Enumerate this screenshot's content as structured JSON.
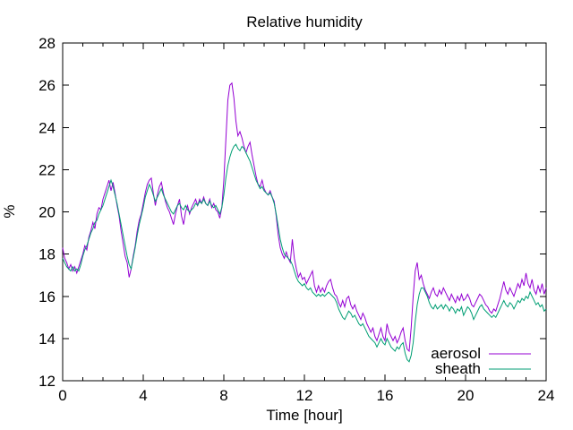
{
  "page": {
    "background": "#ffffff",
    "axis_color": "#000000",
    "text_color": "#000000"
  },
  "chart_data": {
    "type": "line",
    "title": "Relative humidity",
    "xlabel": "Time [hour]",
    "ylabel": "%",
    "xlim": [
      0,
      24
    ],
    "ylim": [
      12,
      28
    ],
    "x_major_ticks": [
      0,
      4,
      8,
      12,
      16,
      20,
      24
    ],
    "x_minor_step": 1,
    "y_major_ticks": [
      12,
      14,
      16,
      18,
      20,
      22,
      24,
      26,
      28
    ],
    "grid": false,
    "legend": {
      "position": "bottom-right-inside",
      "entries": [
        "aerosol",
        "sheath"
      ]
    },
    "x_start": 0,
    "x_step": 0.1,
    "series": [
      {
        "name": "aerosol",
        "color": "#9400d3",
        "values": [
          18.3,
          17.8,
          17.6,
          17.3,
          17.5,
          17.2,
          17.4,
          17.1,
          17.4,
          17.7,
          18.0,
          18.4,
          18.2,
          18.8,
          19.1,
          19.5,
          19.2,
          19.9,
          20.2,
          20.1,
          20.6,
          20.9,
          21.2,
          21.5,
          21.0,
          21.4,
          20.9,
          20.3,
          19.8,
          19.1,
          18.5,
          17.9,
          17.6,
          16.9,
          17.3,
          17.9,
          18.4,
          19.1,
          19.6,
          19.9,
          20.4,
          20.9,
          21.3,
          21.5,
          21.6,
          20.9,
          20.3,
          20.8,
          21.2,
          21.4,
          20.9,
          20.5,
          20.2,
          20.0,
          19.7,
          19.4,
          19.9,
          20.3,
          20.6,
          19.8,
          19.4,
          20.0,
          20.3,
          19.9,
          20.2,
          20.4,
          20.6,
          20.3,
          20.6,
          20.4,
          20.7,
          20.4,
          20.3,
          20.6,
          20.2,
          20.4,
          20.1,
          20.0,
          19.7,
          20.2,
          21.5,
          23.4,
          25.3,
          26.0,
          26.1,
          25.4,
          24.3,
          23.6,
          23.8,
          23.5,
          23.1,
          22.8,
          23.1,
          23.3,
          22.7,
          22.2,
          21.7,
          21.3,
          21.2,
          21.5,
          21.1,
          20.9,
          20.8,
          21.0,
          20.7,
          20.5,
          19.8,
          18.9,
          18.3,
          18.0,
          17.8,
          18.1,
          17.8,
          17.6,
          18.7,
          17.8,
          17.3,
          16.9,
          17.1,
          16.8,
          16.9,
          16.6,
          16.8,
          17.0,
          17.2,
          16.5,
          16.2,
          16.5,
          16.2,
          16.4,
          16.2,
          16.5,
          16.7,
          16.8,
          16.4,
          16.1,
          16.0,
          15.7,
          15.5,
          15.8,
          15.5,
          15.9,
          16.0,
          15.6,
          15.4,
          15.6,
          15.3,
          15.1,
          14.9,
          15.2,
          15.0,
          14.7,
          14.5,
          14.3,
          14.5,
          14.1,
          13.9,
          14.2,
          14.5,
          14.1,
          13.9,
          14.7,
          14.3,
          14.1,
          13.9,
          14.1,
          13.8,
          14.0,
          14.3,
          14.5,
          13.9,
          13.5,
          13.4,
          14.5,
          16.0,
          17.2,
          17.6,
          16.8,
          17.0,
          16.6,
          16.3,
          16.1,
          15.9,
          16.2,
          16.4,
          16.1,
          16.0,
          16.3,
          16.1,
          16.4,
          16.2,
          16.0,
          15.8,
          16.1,
          15.9,
          15.7,
          16.0,
          15.8,
          16.1,
          15.8,
          15.9,
          16.1,
          15.9,
          15.6,
          15.5,
          15.7,
          15.9,
          16.1,
          16.0,
          15.8,
          15.6,
          15.5,
          15.3,
          15.2,
          15.4,
          15.3,
          15.6,
          15.9,
          16.3,
          16.7,
          16.3,
          16.1,
          16.4,
          16.2,
          16.0,
          16.3,
          16.6,
          16.4,
          16.8,
          16.5,
          17.1,
          16.6,
          16.4,
          16.8,
          16.3,
          16.1,
          16.5,
          16.2,
          16.6,
          16.1,
          16.4
        ]
      },
      {
        "name": "sheath",
        "color": "#009e73",
        "values": [
          17.8,
          17.6,
          17.4,
          17.3,
          17.2,
          17.4,
          17.2,
          17.3,
          17.2,
          17.5,
          17.9,
          18.2,
          18.4,
          18.7,
          19.0,
          19.2,
          19.5,
          19.6,
          19.9,
          20.1,
          20.3,
          20.6,
          20.9,
          21.2,
          21.5,
          21.2,
          20.8,
          20.4,
          19.9,
          19.4,
          18.9,
          18.4,
          17.9,
          17.5,
          17.3,
          17.8,
          18.3,
          18.9,
          19.4,
          19.8,
          20.2,
          20.7,
          21.0,
          21.3,
          21.1,
          20.8,
          20.5,
          20.7,
          20.9,
          21.1,
          20.8,
          20.6,
          20.4,
          20.2,
          20.0,
          19.9,
          20.1,
          20.3,
          20.4,
          20.2,
          20.1,
          20.3,
          20.1,
          20.0,
          20.1,
          20.2,
          20.4,
          20.3,
          20.5,
          20.4,
          20.6,
          20.4,
          20.3,
          20.5,
          20.3,
          20.2,
          20.3,
          20.1,
          19.9,
          20.2,
          20.8,
          21.6,
          22.2,
          22.6,
          22.9,
          23.1,
          23.2,
          23.0,
          22.9,
          23.1,
          23.0,
          22.8,
          22.6,
          22.4,
          22.1,
          21.8,
          21.5,
          21.3,
          21.1,
          21.2,
          21.0,
          20.9,
          20.8,
          20.9,
          20.7,
          20.4,
          19.9,
          19.3,
          18.7,
          18.3,
          18.0,
          17.9,
          17.8,
          17.7,
          17.5,
          17.2,
          16.9,
          16.7,
          16.6,
          16.5,
          16.6,
          16.4,
          16.3,
          16.4,
          16.2,
          16.1,
          16.0,
          16.1,
          16.0,
          16.1,
          16.0,
          16.1,
          16.2,
          16.1,
          16.0,
          15.9,
          15.7,
          15.4,
          15.2,
          15.0,
          14.9,
          15.1,
          15.3,
          15.2,
          15.0,
          15.1,
          14.9,
          14.7,
          14.6,
          14.7,
          14.5,
          14.3,
          14.1,
          14.0,
          13.9,
          13.8,
          13.6,
          13.8,
          14.0,
          13.8,
          13.7,
          14.0,
          13.8,
          13.6,
          13.5,
          13.4,
          13.6,
          13.5,
          13.7,
          13.8,
          13.3,
          13.0,
          12.9,
          13.2,
          13.8,
          14.8,
          15.6,
          16.1,
          16.4,
          16.4,
          16.2,
          16.0,
          15.7,
          15.5,
          15.4,
          15.6,
          15.4,
          15.5,
          15.6,
          15.4,
          15.6,
          15.5,
          15.3,
          15.5,
          15.4,
          15.2,
          15.4,
          15.3,
          15.5,
          15.1,
          15.3,
          15.5,
          15.4,
          15.2,
          14.9,
          15.1,
          15.3,
          15.5,
          15.6,
          15.4,
          15.3,
          15.2,
          15.1,
          15.0,
          15.1,
          15.0,
          15.2,
          15.4,
          15.6,
          15.8,
          15.6,
          15.5,
          15.7,
          15.6,
          15.4,
          15.6,
          15.8,
          15.7,
          15.9,
          15.8,
          16.0,
          15.9,
          16.2,
          16.0,
          15.8,
          15.6,
          15.7,
          15.5,
          15.6,
          15.3,
          15.4
        ]
      }
    ]
  }
}
